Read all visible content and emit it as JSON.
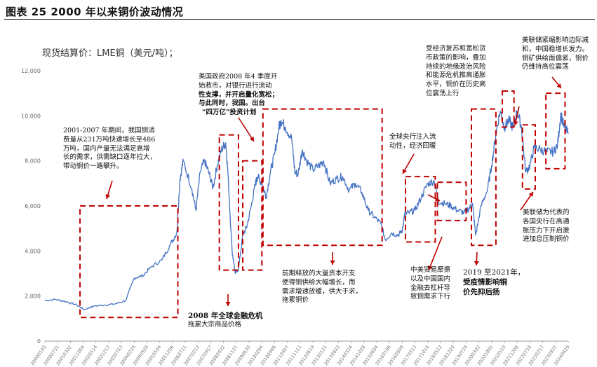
{
  "figure_title": "图表 25 2000 年以来铜价波动情况",
  "chart_data": {
    "type": "line",
    "subtitle": "现货结算价：LME铜（美元/吨）；",
    "ylim": [
      0,
      12000
    ],
    "y_ticks": [
      "0",
      "2,000",
      "4,000",
      "6,000",
      "8,000",
      "10,000",
      "12,000"
    ],
    "x_ticks": [
      "20000103",
      "20000731",
      "20010302",
      "20011004",
      "20020514",
      "20021213",
      "20030723",
      "20040224",
      "20040928",
      "20050504",
      "20051206",
      "20060711",
      "20070212",
      "20070917",
      "20080422",
      "20081121",
      "20090630",
      "20100204",
      "20100906",
      "20110407",
      "20111111",
      "20120619",
      "20130121",
      "20130823",
      "20140324",
      "20141028",
      "20150604",
      "20160106",
      "20160809",
      "20170313",
      "20171016",
      "20180522",
      "20181220",
      "20190729",
      "20200302",
      "20201005",
      "20210510",
      "20211208",
      "20220718",
      "20230217",
      "20230925",
      "20240429"
    ],
    "series": [
      {
        "name": "",
        "x": [
          2000.0,
          2000.5,
          2001.0,
          2001.5,
          2001.85,
          2002.3,
          2002.8,
          2003.3,
          2003.8,
          2004.2,
          2004.6,
          2005.0,
          2005.5,
          2005.9,
          2006.2,
          2006.35,
          2006.5,
          2006.9,
          2007.1,
          2007.3,
          2007.5,
          2007.7,
          2007.9,
          2008.1,
          2008.3,
          2008.5,
          2008.6,
          2008.8,
          2008.95,
          2009.1,
          2009.3,
          2009.5,
          2009.7,
          2009.9,
          2010.0,
          2010.2,
          2010.4,
          2010.6,
          2010.8,
          2011.0,
          2011.1,
          2011.3,
          2011.6,
          2011.75,
          2011.9,
          2012.1,
          2012.3,
          2012.6,
          2012.9,
          2013.1,
          2013.4,
          2013.7,
          2014.0,
          2014.3,
          2014.6,
          2014.9,
          2015.2,
          2015.5,
          2015.8,
          2016.0,
          2016.3,
          2016.6,
          2016.8,
          2016.9,
          2017.1,
          2017.4,
          2017.7,
          2018.0,
          2018.3,
          2018.5,
          2018.8,
          2019.1,
          2019.4,
          2019.7,
          2019.95,
          2020.1,
          2020.25,
          2020.5,
          2020.8,
          2021.0,
          2021.2,
          2021.4,
          2021.6,
          2021.8,
          2022.0,
          2022.2,
          2022.4,
          2022.6,
          2022.8,
          2023.0,
          2023.3,
          2023.6,
          2023.9,
          2024.1,
          2024.25,
          2024.4,
          2024.6
        ],
        "y": [
          1800,
          1850,
          1750,
          1600,
          1400,
          1550,
          1600,
          1650,
          1800,
          2800,
          2900,
          3300,
          3600,
          4300,
          4800,
          7200,
          8000,
          6800,
          5800,
          7500,
          8000,
          7500,
          6800,
          7800,
          8500,
          8800,
          7500,
          4000,
          3000,
          3200,
          4700,
          5100,
          6000,
          7000,
          7300,
          7000,
          6400,
          7500,
          8300,
          9500,
          9800,
          9500,
          9000,
          7500,
          7400,
          8500,
          8000,
          7600,
          7800,
          8000,
          7000,
          7200,
          7300,
          6700,
          7000,
          6600,
          5800,
          5500,
          5200,
          4500,
          4800,
          4700,
          4900,
          5600,
          5700,
          5800,
          6400,
          7000,
          7100,
          6200,
          6100,
          6000,
          5800,
          5700,
          5900,
          6100,
          4700,
          6000,
          6700,
          7800,
          9200,
          10200,
          9500,
          9800,
          9500,
          10200,
          9500,
          7500,
          7800,
          8600,
          8500,
          8400,
          8400,
          8700,
          10100,
          9500,
          9200
        ]
      }
    ],
    "annotations": [
      [
        "2001-2007 年期间，我国铜消",
        "费量从231万吨快速增长至486",
        "万吨，国内产量无法满足高增",
        "长的需求，供需缺口逐年拉大，",
        "带动铜价一路攀升。"
      ],
      [
        "美国政府2008 年4 季度开",
        "始救市，对银行进行流动",
        "性支撑，并开启量化宽松；",
        "与此同时，我国。出台",
        "“四万亿”投资计划"
      ],
      [
        "2008 年全球金融危机",
        "拖累大宗商品价格"
      ],
      [
        "全球央行注入流",
        "动性，经济回暖"
      ],
      [
        "前期释放的大量资本开支",
        "使得铜供给大幅增长，而",
        "需求增速放缓，供大于求，",
        "拖累铜价"
      ],
      [
        "中美贸易摩擦",
        "以及中国国内",
        "金融去杠杆导",
        "致铜需求下行"
      ],
      [
        "受经济复苏和宽松货",
        "币政策的影响，叠加",
        "持续的地缘政治风险",
        "和能源危机推高通胀",
        "水平，铜价在历史高",
        "位震荡上行"
      ],
      [
        "2019 至2021年，",
        "受疫情影响铜",
        "价先抑后扬"
      ],
      [
        "美联储紧缩影响边际减",
        "和，中国稳增长发力。",
        "铜矿供给面偏紧，铜价",
        "仍维持高位震荡"
      ],
      [
        "美联储为代表的",
        "各国央行在高通",
        "胀压力下开启激",
        "进加息压制铜价"
      ]
    ]
  }
}
